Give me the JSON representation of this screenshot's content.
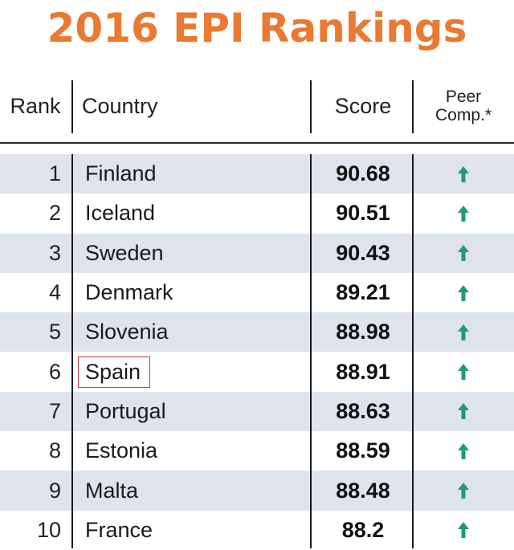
{
  "title": "2016 EPI Rankings",
  "columns": {
    "rank": "Rank",
    "country": "Country",
    "score": "Score",
    "peer_line1": "Peer",
    "peer_line2": "Comp.*"
  },
  "colors": {
    "title": "#ea7a32",
    "arrow": "#1f9a7c",
    "shaded_row": "#dfe4ec",
    "highlight_border": "#d23a3a"
  },
  "highlighted_country": "Spain",
  "rows": [
    {
      "rank": "1",
      "country": "Finland",
      "score": "90.68",
      "peer": "up-arrow-icon"
    },
    {
      "rank": "2",
      "country": "Iceland",
      "score": "90.51",
      "peer": "up-arrow-icon"
    },
    {
      "rank": "3",
      "country": "Sweden",
      "score": "90.43",
      "peer": "up-arrow-icon"
    },
    {
      "rank": "4",
      "country": "Denmark",
      "score": "89.21",
      "peer": "up-arrow-icon"
    },
    {
      "rank": "5",
      "country": "Slovenia",
      "score": "88.98",
      "peer": "up-arrow-icon"
    },
    {
      "rank": "6",
      "country": "Spain",
      "score": "88.91",
      "peer": "up-arrow-icon"
    },
    {
      "rank": "7",
      "country": "Portugal",
      "score": "88.63",
      "peer": "up-arrow-icon"
    },
    {
      "rank": "8",
      "country": "Estonia",
      "score": "88.59",
      "peer": "up-arrow-icon"
    },
    {
      "rank": "9",
      "country": "Malta",
      "score": "88.48",
      "peer": "up-arrow-icon"
    },
    {
      "rank": "10",
      "country": "France",
      "score": "88.2",
      "peer": "up-arrow-icon"
    }
  ]
}
